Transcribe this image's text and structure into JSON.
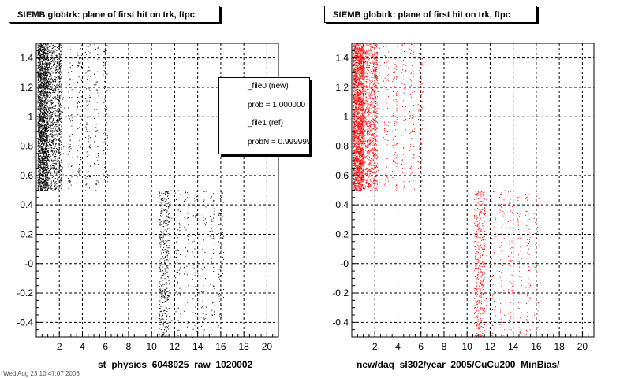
{
  "canvas": {
    "footer_text": "Wed Aug 23 10:47:07 2006"
  },
  "chart_data": [
    {
      "type": "scatter",
      "title": "StEMB globtrk: plane of first hit on trk, ftpc",
      "xlabel": "st_physics_6048025_raw_1020002",
      "ylabel": "",
      "xlim": [
        0,
        21
      ],
      "ylim": [
        -0.5,
        1.5
      ],
      "x_ticks": [
        2,
        4,
        6,
        8,
        10,
        12,
        14,
        16,
        18,
        20
      ],
      "x_tick_labels": [
        "2",
        "4",
        "6",
        "8",
        "10",
        "12",
        "14",
        "16",
        "18",
        "20"
      ],
      "y_ticks": [
        -0.4,
        -0.2,
        0,
        0.2,
        0.4,
        0.6,
        0.8,
        1,
        1.2,
        1.4
      ],
      "y_tick_labels": [
        "-0.4",
        "-0.2",
        "-0",
        "0.2",
        "0.4",
        "0.6",
        "0.8",
        "1",
        "1.2",
        "1.4"
      ],
      "grid": true,
      "marker_color": "#000000",
      "series": [
        {
          "values": [
            {
              "x_range": [
                0.1,
                1.0
              ],
              "y_range": [
                0.5,
                1.5
              ],
              "density": "very high"
            },
            {
              "x_range": [
                1.0,
                2.2
              ],
              "y_range": [
                0.5,
                1.5
              ],
              "density": "high"
            },
            {
              "x_range": [
                2.2,
                6.3
              ],
              "y_range": [
                0.5,
                1.5
              ],
              "density": "sparse, banded"
            },
            {
              "x_range": [
                10.6,
                11.5
              ],
              "y_range": [
                -0.5,
                0.5
              ],
              "density": "medium"
            },
            {
              "x_range": [
                11.5,
                16.3
              ],
              "y_range": [
                -0.5,
                0.5
              ],
              "density": "sparse, banded"
            }
          ]
        }
      ],
      "legend": {
        "placement": "top-right",
        "entries": [
          {
            "label": "_file0 (new)",
            "color": "#000000"
          },
          {
            "label": "prob = 1.000000",
            "color": "#000000"
          },
          {
            "label": "_file1 (ref)",
            "color": "#ff0000"
          },
          {
            "label": "probN = 0.999999",
            "color": "#ff0000"
          }
        ]
      }
    },
    {
      "type": "scatter",
      "title": "StEMB globtrk: plane of first hit on trk, ftpc",
      "xlabel": "new/daq_sl302/year_2005/CuCu200_MinBias/",
      "ylabel": "",
      "xlim": [
        0,
        21
      ],
      "ylim": [
        -0.5,
        1.5
      ],
      "x_ticks": [
        2,
        4,
        6,
        8,
        10,
        12,
        14,
        16,
        18,
        20
      ],
      "x_tick_labels": [
        "2",
        "4",
        "6",
        "8",
        "10",
        "12",
        "14",
        "16",
        "18",
        "20"
      ],
      "y_ticks": [
        -0.4,
        -0.2,
        0,
        0.2,
        0.4,
        0.6,
        0.8,
        1,
        1.2,
        1.4
      ],
      "y_tick_labels": [
        "-0.4",
        "-0.2",
        "-0",
        "0.2",
        "0.4",
        "0.6",
        "0.8",
        "1",
        "1.2",
        "1.4"
      ],
      "grid": true,
      "marker_color": "#ff0000",
      "series": [
        {
          "values": [
            {
              "x_range": [
                0.1,
                1.0
              ],
              "y_range": [
                0.5,
                1.5
              ],
              "density": "very high"
            },
            {
              "x_range": [
                1.0,
                2.2
              ],
              "y_range": [
                0.5,
                1.5
              ],
              "density": "high"
            },
            {
              "x_range": [
                2.2,
                6.3
              ],
              "y_range": [
                0.5,
                1.5
              ],
              "density": "sparse, banded"
            },
            {
              "x_range": [
                10.6,
                11.5
              ],
              "y_range": [
                -0.5,
                0.5
              ],
              "density": "medium"
            },
            {
              "x_range": [
                11.5,
                16.3
              ],
              "y_range": [
                -0.5,
                0.5
              ],
              "density": "sparse, banded"
            }
          ]
        }
      ]
    }
  ]
}
